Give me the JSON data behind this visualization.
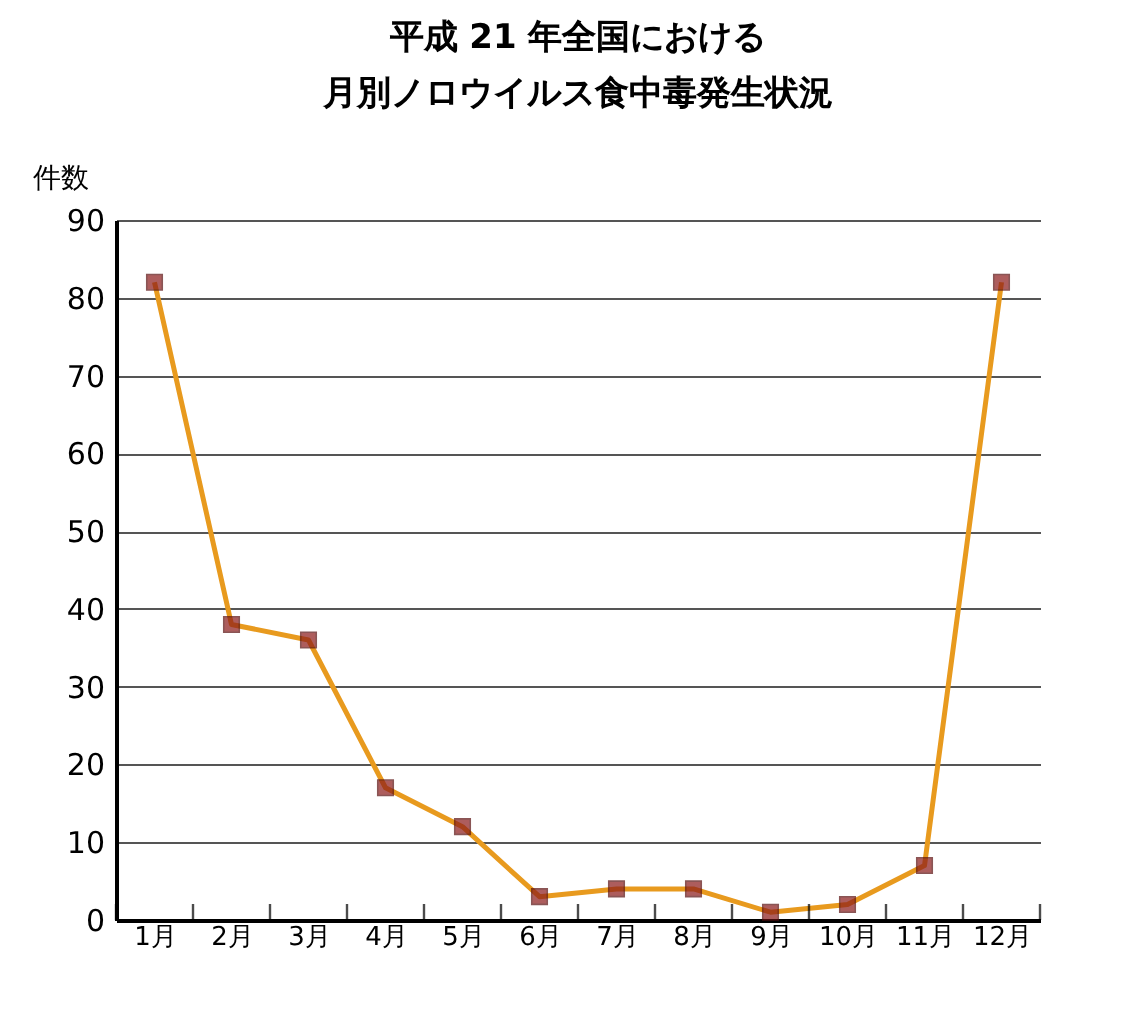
{
  "chart_data": {
    "type": "line",
    "title": "平成 21 年全国における月別ノロウイルス食中毒発生状況",
    "ylabel": "件数",
    "categories": [
      "1月",
      "2月",
      "3月",
      "4月",
      "5月",
      "6月",
      "7月",
      "8月",
      "9月",
      "10月",
      "11月",
      "12月"
    ],
    "series": [
      {
        "color": "#e89a1e",
        "values": [
          82,
          38,
          36,
          17,
          12,
          3,
          4,
          4,
          1,
          2,
          7,
          82
        ]
      }
    ],
    "ylim": [
      0,
      90
    ],
    "yticks": [
      0,
      10,
      20,
      30,
      40,
      50,
      60,
      70,
      80,
      90
    ],
    "grid": "y",
    "marker": "square",
    "line_style": "solid",
    "legend": false
  }
}
